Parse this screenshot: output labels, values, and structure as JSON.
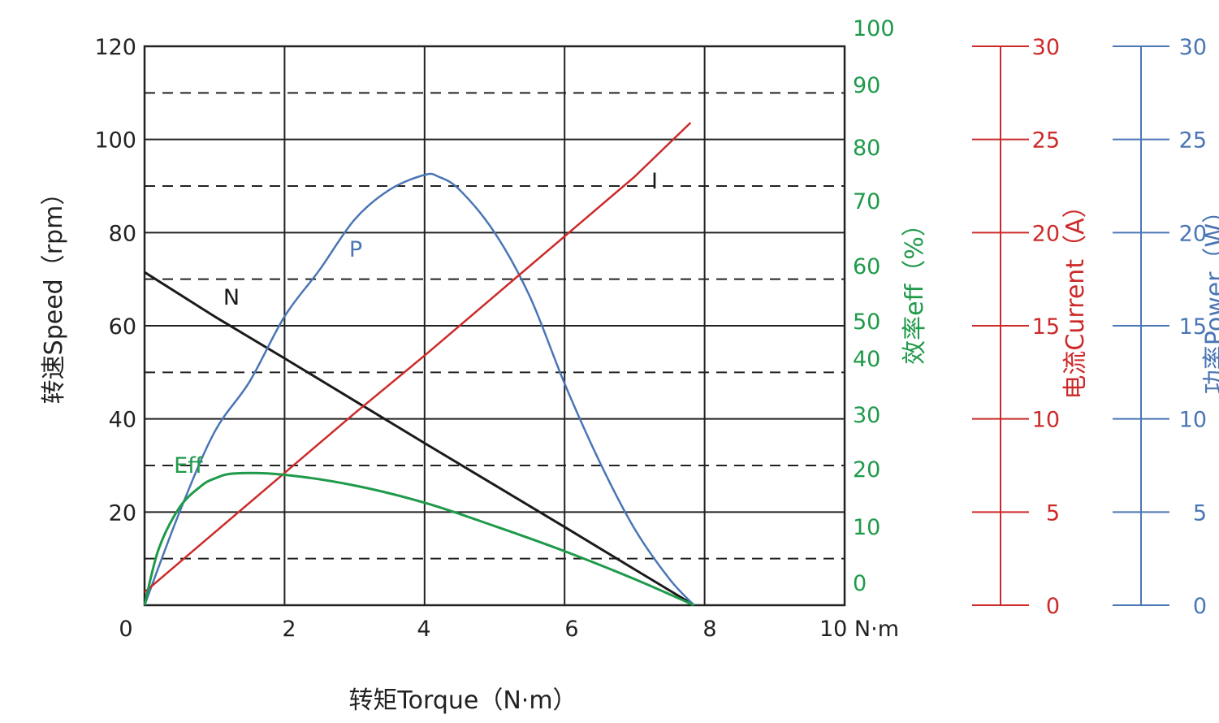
{
  "chart_data": {
    "type": "line",
    "colors": {
      "speed": "#1a1a1a",
      "power": "#4a76b5",
      "current": "#cc2a2a",
      "efficiency": "#1f9a4a",
      "grid": "#222222"
    },
    "x_axis": {
      "label": "转矩Torque（N·m）",
      "range": [
        0,
        10
      ],
      "ticks": [
        "0",
        "2",
        "4",
        "6",
        "8",
        "10 N·m"
      ]
    },
    "y_axes": {
      "speed": {
        "label": "转速Speed（rpm）",
        "range": [
          0,
          120
        ],
        "ticks": [
          0,
          20,
          40,
          60,
          80,
          100,
          120
        ]
      },
      "efficiency": {
        "label": "效率eff（%）",
        "ticks": [
          0,
          10,
          20,
          30,
          40,
          50,
          60,
          70,
          80,
          90,
          100
        ]
      },
      "current": {
        "label": "电流Current（A）",
        "range": [
          0,
          30
        ],
        "ticks": [
          0,
          5,
          10,
          15,
          20,
          25,
          30
        ]
      },
      "power": {
        "label": "功率Power（W）",
        "range": [
          0,
          30
        ],
        "ticks": [
          0,
          5,
          10,
          15,
          20,
          25,
          30
        ]
      }
    },
    "series": [
      {
        "name": "N",
        "axis": "speed",
        "x": [
          0,
          1,
          2,
          3,
          4,
          5,
          6,
          7,
          7.85
        ],
        "y": [
          71.5,
          62.0,
          53.0,
          43.9,
          34.8,
          25.8,
          16.8,
          7.7,
          0
        ]
      },
      {
        "name": "P",
        "axis": "power",
        "x": [
          0,
          0.5,
          1,
          1.5,
          2,
          2.5,
          3,
          3.5,
          4,
          4.2,
          4.5,
          5,
          5.5,
          6,
          6.5,
          7,
          7.5,
          7.85
        ],
        "y": [
          0,
          5.0,
          9.3,
          12.0,
          15.5,
          18.0,
          20.7,
          22.3,
          23.1,
          23.0,
          22.3,
          20.0,
          16.6,
          11.9,
          7.7,
          4.1,
          1.4,
          0
        ]
      },
      {
        "name": "I",
        "axis": "current",
        "x": [
          0,
          1,
          2,
          3,
          4,
          5,
          6,
          7,
          7.8
        ],
        "y": [
          0.7,
          3.9,
          7.1,
          10.3,
          13.4,
          16.6,
          19.8,
          23.0,
          25.9
        ]
      },
      {
        "name": "Eff",
        "axis": "speed",
        "x": [
          0,
          0.2,
          0.5,
          0.8,
          1.0,
          1.3,
          2.0,
          3.0,
          4.0,
          5.0,
          6.0,
          7.0,
          7.85
        ],
        "y": [
          0,
          12.0,
          21.0,
          25.5,
          27.2,
          28.3,
          28.0,
          25.7,
          22.0,
          17.0,
          11.6,
          5.6,
          0
        ]
      }
    ],
    "curve_labels": [
      "N",
      "P",
      "I",
      "Eff"
    ]
  }
}
